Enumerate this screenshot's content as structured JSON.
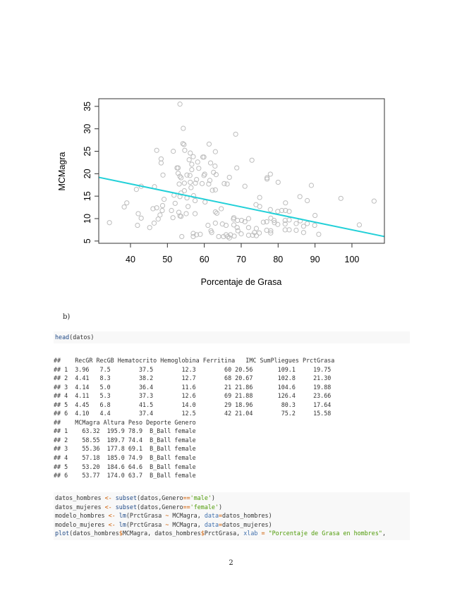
{
  "chart_data": {
    "type": "scatter",
    "title": "",
    "xlabel": "Porcentaje de Grasa",
    "ylabel": "MCMagra",
    "xlim": [
      31.4,
      108.8
    ],
    "ylim": [
      4.5,
      36.7
    ],
    "xticks": [
      40,
      50,
      60,
      70,
      80,
      90,
      100
    ],
    "yticks": [
      5,
      10,
      15,
      20,
      25,
      30,
      35
    ],
    "grid": false,
    "point_color": "#bdbdbd",
    "line_color": "#22d0d8",
    "regression_line": {
      "intercept": 24.55,
      "slope": -0.1705
    },
    "points": [
      [
        34.3,
        9.1
      ],
      [
        38.3,
        12.6
      ],
      [
        39.0,
        13.5
      ],
      [
        41.6,
        16.5
      ],
      [
        42.9,
        17.2
      ],
      [
        41.9,
        8.5
      ],
      [
        42.1,
        11.1
      ],
      [
        42.9,
        10.1
      ],
      [
        45.2,
        8.0
      ],
      [
        46.4,
        9.0
      ],
      [
        46.1,
        12.2
      ],
      [
        47.1,
        12.4
      ],
      [
        46.5,
        17.1
      ],
      [
        47.1,
        25.2
      ],
      [
        48.3,
        23.3
      ],
      [
        48.3,
        22.4
      ],
      [
        47.5,
        9.9
      ],
      [
        48.0,
        10.8
      ],
      [
        48.6,
        11.8
      ],
      [
        48.7,
        12.9
      ],
      [
        49.1,
        14.3
      ],
      [
        48.8,
        19.7
      ],
      [
        51.6,
        25.0
      ],
      [
        51.1,
        11.8
      ],
      [
        51.5,
        10.2
      ],
      [
        51.8,
        15.2
      ],
      [
        52.1,
        13.4
      ],
      [
        52.6,
        21.3
      ],
      [
        52.9,
        21.3
      ],
      [
        52.9,
        20.1
      ],
      [
        53.4,
        35.5
      ],
      [
        53.2,
        17.7
      ],
      [
        53.4,
        19.4
      ],
      [
        53.7,
        19.1
      ],
      [
        53.1,
        11.4
      ],
      [
        53.4,
        10.6
      ],
      [
        53.7,
        10.5
      ],
      [
        53.4,
        14.9
      ],
      [
        53.7,
        15.7
      ],
      [
        54.3,
        30.1
      ],
      [
        54.2,
        26.7
      ],
      [
        54.5,
        26.5
      ],
      [
        54.7,
        25.2
      ],
      [
        54.6,
        17.9
      ],
      [
        54.6,
        16.2
      ],
      [
        53.9,
        6.0
      ],
      [
        55.1,
        11.1
      ],
      [
        55.3,
        19.7
      ],
      [
        55.3,
        14.6
      ],
      [
        55.6,
        12.7
      ],
      [
        55.9,
        23.1
      ],
      [
        56.1,
        19.6
      ],
      [
        56.2,
        18.1
      ],
      [
        56.2,
        24.6
      ],
      [
        56.6,
        22.1
      ],
      [
        56.6,
        20.9
      ],
      [
        56.4,
        16.9
      ],
      [
        57.0,
        23.8
      ],
      [
        57.0,
        6.7
      ],
      [
        57.0,
        6.0
      ],
      [
        57.1,
        15.1
      ],
      [
        57.5,
        11.1
      ],
      [
        57.5,
        14.0
      ],
      [
        57.6,
        17.9
      ],
      [
        57.9,
        18.7
      ],
      [
        57.9,
        6.4
      ],
      [
        58.9,
        6.5
      ],
      [
        58.2,
        22.6
      ],
      [
        58.5,
        21.2
      ],
      [
        59.4,
        17.8
      ],
      [
        59.6,
        23.7
      ],
      [
        59.9,
        23.7
      ],
      [
        59.9,
        19.6
      ],
      [
        60.1,
        19.9
      ],
      [
        60.2,
        13.7
      ],
      [
        61.3,
        26.6
      ],
      [
        61.0,
        8.5
      ],
      [
        61.2,
        17.7
      ],
      [
        61.5,
        18.5
      ],
      [
        61.7,
        22.4
      ],
      [
        61.8,
        7.3
      ],
      [
        62.0,
        6.9
      ],
      [
        62.2,
        16.3
      ],
      [
        62.5,
        20.3
      ],
      [
        63.0,
        24.9
      ],
      [
        62.9,
        21.7
      ],
      [
        63.0,
        16.4
      ],
      [
        63.0,
        9.0
      ],
      [
        63.0,
        11.5
      ],
      [
        63.4,
        11.2
      ],
      [
        63.2,
        19.8
      ],
      [
        63.9,
        6.0
      ],
      [
        64.6,
        12.2
      ],
      [
        65.2,
        6.0
      ],
      [
        64.9,
        8.8
      ],
      [
        65.4,
        17.8
      ],
      [
        66.2,
        17.7
      ],
      [
        65.9,
        8.5
      ],
      [
        65.9,
        6.4
      ],
      [
        66.8,
        19.2
      ],
      [
        66.8,
        5.7
      ],
      [
        67.1,
        6.4
      ],
      [
        66.4,
        6.0
      ],
      [
        68.0,
        10.2
      ],
      [
        67.9,
        9.9
      ],
      [
        68.0,
        8.6
      ],
      [
        68.1,
        6.1
      ],
      [
        68.5,
        28.8
      ],
      [
        68.8,
        21.3
      ],
      [
        69.0,
        9.6
      ],
      [
        68.9,
        8.0
      ],
      [
        69.1,
        7.3
      ],
      [
        70.1,
        9.6
      ],
      [
        70.0,
        6.6
      ],
      [
        71.0,
        9.3
      ],
      [
        71.0,
        17.2
      ],
      [
        72.0,
        10.0
      ],
      [
        72.0,
        8.0
      ],
      [
        72.0,
        6.3
      ],
      [
        72.9,
        23.0
      ],
      [
        73.1,
        6.3
      ],
      [
        74.0,
        13.1
      ],
      [
        74.1,
        7.8
      ],
      [
        74.1,
        6.2
      ],
      [
        73.6,
        6.9
      ],
      [
        75.0,
        14.7
      ],
      [
        75.0,
        12.7
      ],
      [
        74.9,
        6.8
      ],
      [
        76.0,
        9.2
      ],
      [
        76.9,
        7.4
      ],
      [
        76.9,
        9.3
      ],
      [
        77.0,
        19.1
      ],
      [
        77.0,
        18.8
      ],
      [
        77.9,
        12.0
      ],
      [
        78.0,
        10.1
      ],
      [
        78.0,
        7.3
      ],
      [
        78.0,
        6.8
      ],
      [
        77.9,
        19.9
      ],
      [
        78.9,
        9.6
      ],
      [
        79.0,
        9.1
      ],
      [
        79.9,
        8.7
      ],
      [
        80.0,
        18.1
      ],
      [
        79.9,
        11.6
      ],
      [
        81.0,
        11.8
      ],
      [
        82.0,
        11.8
      ],
      [
        82.0,
        13.5
      ],
      [
        81.9,
        8.8
      ],
      [
        81.9,
        7.5
      ],
      [
        81.9,
        9.6
      ],
      [
        83.0,
        11.6
      ],
      [
        83.0,
        9.7
      ],
      [
        83.0,
        7.5
      ],
      [
        84.9,
        8.9
      ],
      [
        84.9,
        7.4
      ],
      [
        85.9,
        14.9
      ],
      [
        86.0,
        9.5
      ],
      [
        86.9,
        8.3
      ],
      [
        86.9,
        6.9
      ],
      [
        87.9,
        14.0
      ],
      [
        87.9,
        8.9
      ],
      [
        89.0,
        17.4
      ],
      [
        90.0,
        10.7
      ],
      [
        89.9,
        8.5
      ],
      [
        91.0,
        6.5
      ],
      [
        97.0,
        14.5
      ],
      [
        102.0,
        8.6
      ],
      [
        106.0,
        13.9
      ]
    ]
  },
  "section_label": "b)",
  "code1": {
    "fn": "head",
    "rest": "(datos)"
  },
  "output1": [
    "##    RecGR RecGB Hematocrito Hemoglobina Ferritina   IMC SumPliegues PrctGrasa",
    "## 1  3.96   7.5        37.5        12.3        60 20.56       109.1     19.75",
    "## 2  4.41   8.3        38.2        12.7        68 20.67       102.8     21.30",
    "## 3  4.14   5.0        36.4        11.6        21 21.86       104.6     19.88",
    "## 4  4.11   5.3        37.3        12.6        69 21.88       126.4     23.66",
    "## 5  4.45   6.8        41.5        14.0        29 18.96        80.3     17.64",
    "## 6  4.10   4.4        37.4        12.5        42 21.04        75.2     15.58",
    "##    MCMagra Altura Peso Deporte Genero",
    "## 1    63.32  195.9 78.9  B_Ball female",
    "## 2    58.55  189.7 74.4  B_Ball female",
    "## 3    55.36  177.8 69.1  B_Ball female",
    "## 4    57.18  185.0 74.9  B_Ball female",
    "## 5    53.20  184.6 64.6  B_Ball female",
    "## 6    53.77  174.0 63.7  B_Ball female"
  ],
  "code2": [
    [
      [
        "",
        "datos_hombres "
      ],
      [
        "op",
        "<-"
      ],
      [
        "",
        " "
      ],
      [
        "fn",
        "subset"
      ],
      [
        "",
        "(datos,Genero"
      ],
      [
        "op",
        "=="
      ],
      [
        "str",
        "'male'"
      ],
      [
        "",
        ")"
      ]
    ],
    [
      [
        "",
        "datos_mujeres "
      ],
      [
        "op",
        "<-"
      ],
      [
        "",
        " "
      ],
      [
        "fn",
        "subset"
      ],
      [
        "",
        "(datos,Genero"
      ],
      [
        "op",
        "=="
      ],
      [
        "str",
        "'female'"
      ],
      [
        "",
        ")"
      ]
    ],
    [
      [
        "",
        "modelo_hombres "
      ],
      [
        "op",
        "<-"
      ],
      [
        "",
        " "
      ],
      [
        "fn",
        "lm"
      ],
      [
        "",
        "(PrctGrasa "
      ],
      [
        "op",
        "~"
      ],
      [
        "",
        " MCMagra, "
      ],
      [
        "arg",
        "data"
      ],
      [
        "op",
        "="
      ],
      [
        "",
        "datos_hombres)"
      ]
    ],
    [
      [
        "",
        "modelo_mujeres "
      ],
      [
        "op",
        "<-"
      ],
      [
        "",
        " "
      ],
      [
        "fn",
        "lm"
      ],
      [
        "",
        "(PrctGrasa "
      ],
      [
        "op",
        "~"
      ],
      [
        "",
        " MCMagra, "
      ],
      [
        "arg",
        "data"
      ],
      [
        "op",
        "="
      ],
      [
        "",
        "datos_mujeres)"
      ]
    ],
    [
      [
        "fn",
        "plot"
      ],
      [
        "",
        "(datos_hombres"
      ],
      [
        "op",
        "$"
      ],
      [
        "",
        "MCMagra, datos_hombres"
      ],
      [
        "op",
        "$"
      ],
      [
        "",
        "PrctGrasa, "
      ],
      [
        "arg",
        "xlab"
      ],
      [
        "",
        " "
      ],
      [
        "op",
        "="
      ],
      [
        "",
        " "
      ],
      [
        "str",
        "\"Porcentaje de Grasa en hombres\""
      ],
      [
        "",
        ","
      ]
    ]
  ],
  "page_number": "2"
}
